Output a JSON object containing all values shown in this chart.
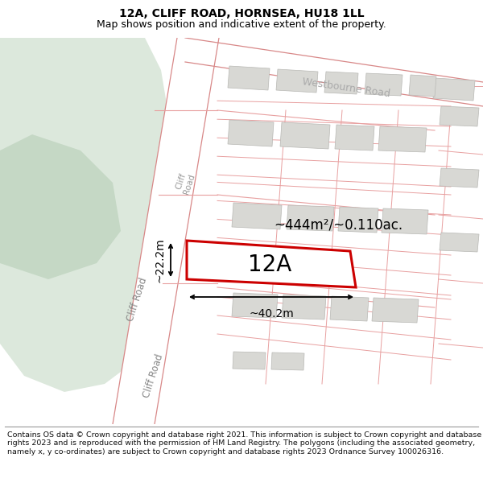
{
  "title_line1": "12A, CLIFF ROAD, HORNSEA, HU18 1LL",
  "title_line2": "Map shows position and indicative extent of the property.",
  "footer_text": "Contains OS data © Crown copyright and database right 2021. This information is subject to Crown copyright and database rights 2023 and is reproduced with the permission of HM Land Registry. The polygons (including the associated geometry, namely x, y co-ordinates) are subject to Crown copyright and database rights 2023 Ordnance Survey 100026316.",
  "area_label": "~444m²/~0.110ac.",
  "width_label": "~40.2m",
  "height_label": "~22.2m",
  "property_label": "12A",
  "map_bg": "#f0f0eb",
  "road_bg": "#ffffff",
  "green_color": "#dce8dc",
  "green_dark": "#c5d8c5",
  "building_gray": "#d8d8d4",
  "cadastral_red": "#e8a0a0",
  "road_line_red": "#d88888",
  "property_red": "#cc0000",
  "road_label_cliff": "Cliff Road",
  "road_label_westbourne": "Westbourne Road",
  "title_fontsize": 10,
  "subtitle_fontsize": 9,
  "footer_fontsize": 6.8
}
